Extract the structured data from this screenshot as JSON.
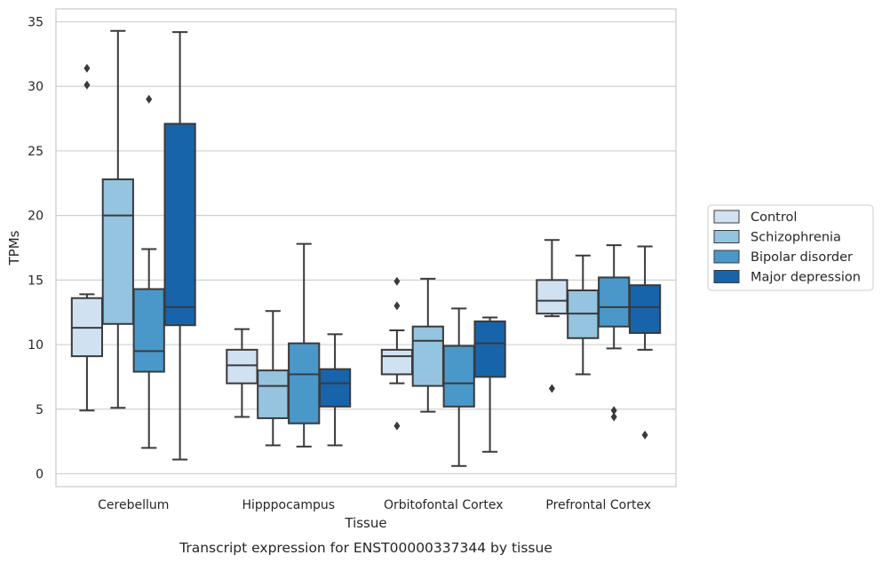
{
  "chart_data": {
    "type": "box",
    "title": "",
    "caption": "Transcript expression for ENST00000337344 by tissue",
    "xlabel": "Tissue",
    "ylabel": "TPMs",
    "ylim": [
      -1,
      36
    ],
    "yticks": [
      0,
      5,
      10,
      15,
      20,
      25,
      30,
      35
    ],
    "grid": "horizontal",
    "legend_position": "right",
    "categories": [
      "Cerebellum",
      "Hipppocampus",
      "Orbitofontal Cortex",
      "Prefrontal Cortex"
    ],
    "series": [
      {
        "name": "Control",
        "color": "#d0e1f2",
        "boxes": [
          {
            "whislo": 4.9,
            "q1": 9.1,
            "med": 11.3,
            "q3": 13.6,
            "whishi": 13.9,
            "fliers": [
              30.1,
              31.4
            ]
          },
          {
            "whislo": 4.4,
            "q1": 7.0,
            "med": 8.4,
            "q3": 9.6,
            "whishi": 11.2,
            "fliers": []
          },
          {
            "whislo": 7.0,
            "q1": 7.7,
            "med": 9.1,
            "q3": 9.6,
            "whishi": 11.1,
            "fliers": [
              3.7,
              13.0,
              14.9
            ]
          },
          {
            "whislo": 12.2,
            "q1": 12.4,
            "med": 13.4,
            "q3": 15.0,
            "whishi": 18.1,
            "fliers": [
              6.6
            ]
          }
        ]
      },
      {
        "name": "Schizophrenia",
        "color": "#94c4df",
        "boxes": [
          {
            "whislo": 5.1,
            "q1": 11.6,
            "med": 20.0,
            "q3": 22.8,
            "whishi": 34.3,
            "fliers": []
          },
          {
            "whislo": 2.2,
            "q1": 4.3,
            "med": 6.8,
            "q3": 8.0,
            "whishi": 12.6,
            "fliers": []
          },
          {
            "whislo": 4.8,
            "q1": 6.8,
            "med": 10.3,
            "q3": 11.4,
            "whishi": 15.1,
            "fliers": []
          },
          {
            "whislo": 7.7,
            "q1": 10.5,
            "med": 12.4,
            "q3": 14.2,
            "whishi": 16.9,
            "fliers": []
          }
        ]
      },
      {
        "name": "Bipolar disorder",
        "color": "#4a98c9",
        "boxes": [
          {
            "whislo": 2.0,
            "q1": 7.9,
            "med": 9.5,
            "q3": 14.3,
            "whishi": 17.4,
            "fliers": [
              29.0
            ]
          },
          {
            "whislo": 2.1,
            "q1": 3.9,
            "med": 7.7,
            "q3": 10.1,
            "whishi": 17.8,
            "fliers": []
          },
          {
            "whislo": 0.6,
            "q1": 5.2,
            "med": 7.0,
            "q3": 9.9,
            "whishi": 12.8,
            "fliers": []
          },
          {
            "whislo": 9.7,
            "q1": 11.4,
            "med": 12.9,
            "q3": 15.2,
            "whishi": 17.7,
            "fliers": [
              4.4,
              4.9
            ]
          }
        ]
      },
      {
        "name": "Major depression",
        "color": "#1764ab",
        "boxes": [
          {
            "whislo": 1.1,
            "q1": 11.5,
            "med": 12.9,
            "q3": 27.1,
            "whishi": 34.2,
            "fliers": []
          },
          {
            "whislo": 2.2,
            "q1": 5.2,
            "med": 7.0,
            "q3": 8.1,
            "whishi": 10.8,
            "fliers": []
          },
          {
            "whislo": 1.7,
            "q1": 7.5,
            "med": 10.1,
            "q3": 11.8,
            "whishi": 12.1,
            "fliers": []
          },
          {
            "whislo": 9.6,
            "q1": 10.9,
            "med": 12.9,
            "q3": 14.6,
            "whishi": 17.6,
            "fliers": [
              3.0
            ]
          }
        ]
      }
    ]
  }
}
